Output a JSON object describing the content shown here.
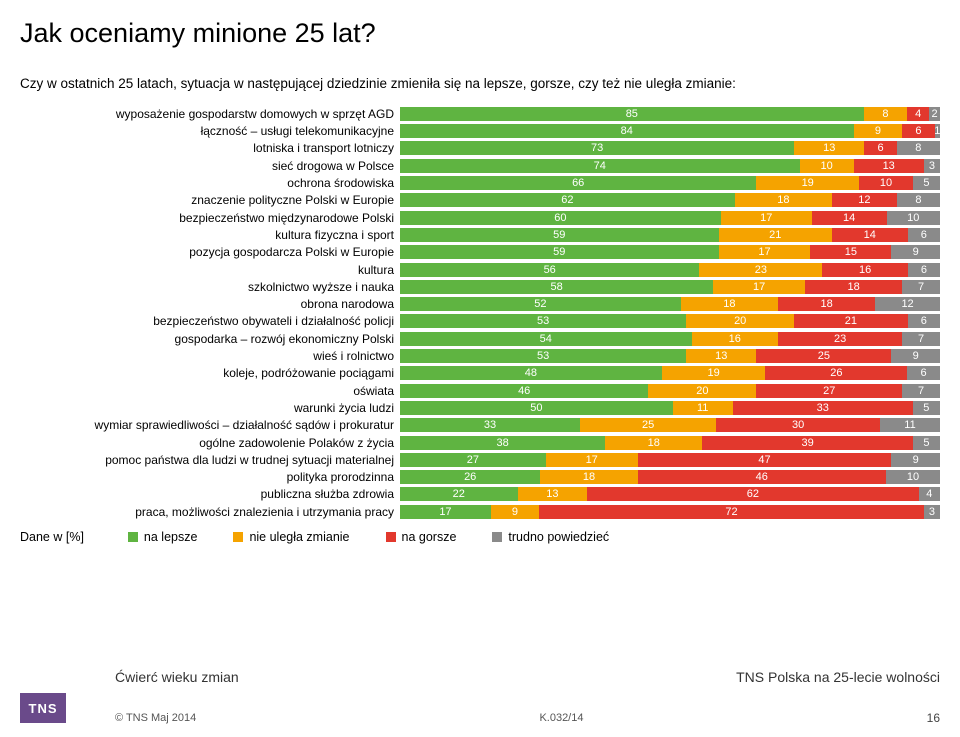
{
  "title": "Jak oceniamy minione 25 lat?",
  "question": "Czy w ostatnich 25 latach, sytuacja w następującej dziedzinie zmieniła się na lepsze, gorsze, czy też nie uległa zmianie:",
  "colors": {
    "better": "#5fb441",
    "same": "#f5a300",
    "worse": "#e2382d",
    "dk": "#8a8a8a",
    "background": "#ffffff"
  },
  "series_labels": {
    "better": "na lepsze",
    "same": "nie uległa zmianie",
    "worse": "na gorsze",
    "dk": "trudno powiedzieć"
  },
  "rows": [
    {
      "label": "wyposażenie gospodarstw domowych w sprzęt AGD",
      "v": [
        85,
        8,
        4,
        2
      ]
    },
    {
      "label": "łączność – usługi telekomunikacyjne",
      "v": [
        84,
        9,
        6,
        1
      ]
    },
    {
      "label": "lotniska i transport lotniczy",
      "v": [
        73,
        13,
        6,
        8
      ]
    },
    {
      "label": "sieć drogowa w Polsce",
      "v": [
        74,
        10,
        13,
        3
      ]
    },
    {
      "label": "ochrona środowiska",
      "v": [
        66,
        19,
        10,
        5
      ]
    },
    {
      "label": "znaczenie polityczne Polski w Europie",
      "v": [
        62,
        18,
        12,
        8
      ]
    },
    {
      "label": "bezpieczeństwo międzynarodowe Polski",
      "v": [
        60,
        17,
        14,
        10
      ]
    },
    {
      "label": "kultura fizyczna i sport",
      "v": [
        59,
        21,
        14,
        6
      ]
    },
    {
      "label": "pozycja gospodarcza Polski w Europie",
      "v": [
        59,
        17,
        15,
        9
      ]
    },
    {
      "label": "kultura",
      "v": [
        56,
        23,
        16,
        6
      ]
    },
    {
      "label": "szkolnictwo wyższe i nauka",
      "v": [
        58,
        17,
        18,
        7
      ]
    },
    {
      "label": "obrona narodowa",
      "v": [
        52,
        18,
        18,
        12
      ]
    },
    {
      "label": "bezpieczeństwo obywateli i działalność policji",
      "v": [
        53,
        20,
        21,
        6
      ]
    },
    {
      "label": "gospodarka – rozwój ekonomiczny Polski",
      "v": [
        54,
        16,
        23,
        7
      ]
    },
    {
      "label": "wieś i rolnictwo",
      "v": [
        53,
        13,
        25,
        9
      ]
    },
    {
      "label": "koleje, podróżowanie pociągami",
      "v": [
        48,
        19,
        26,
        6
      ]
    },
    {
      "label": "oświata",
      "v": [
        46,
        20,
        27,
        7
      ]
    },
    {
      "label": "warunki życia ludzi",
      "v": [
        50,
        11,
        33,
        5
      ]
    },
    {
      "label": "wymiar sprawiedliwości – działalność sądów i prokuratur",
      "v": [
        33,
        25,
        30,
        11
      ]
    },
    {
      "label": "ogólne zadowolenie Polaków z życia",
      "v": [
        38,
        18,
        39,
        5
      ]
    },
    {
      "label": "pomoc państwa dla ludzi w trudnej sytuacji materialnej",
      "v": [
        27,
        17,
        47,
        9
      ]
    },
    {
      "label": "polityka prorodzinna",
      "v": [
        26,
        18,
        46,
        10
      ]
    },
    {
      "label": "publiczna służba zdrowia",
      "v": [
        22,
        13,
        62,
        4
      ]
    },
    {
      "label": "praca, możliwości znalezienia i utrzymania pracy",
      "v": [
        17,
        9,
        72,
        3
      ]
    }
  ],
  "legend_prefix": "Dane w [%]",
  "footer": {
    "left": "Ćwierć wieku zmian",
    "right": "TNS Polska na 25-lecie wolności",
    "copyright": "© TNS Maj 2014",
    "ref": "K.032/14",
    "page": "16",
    "logo": "TNS"
  }
}
